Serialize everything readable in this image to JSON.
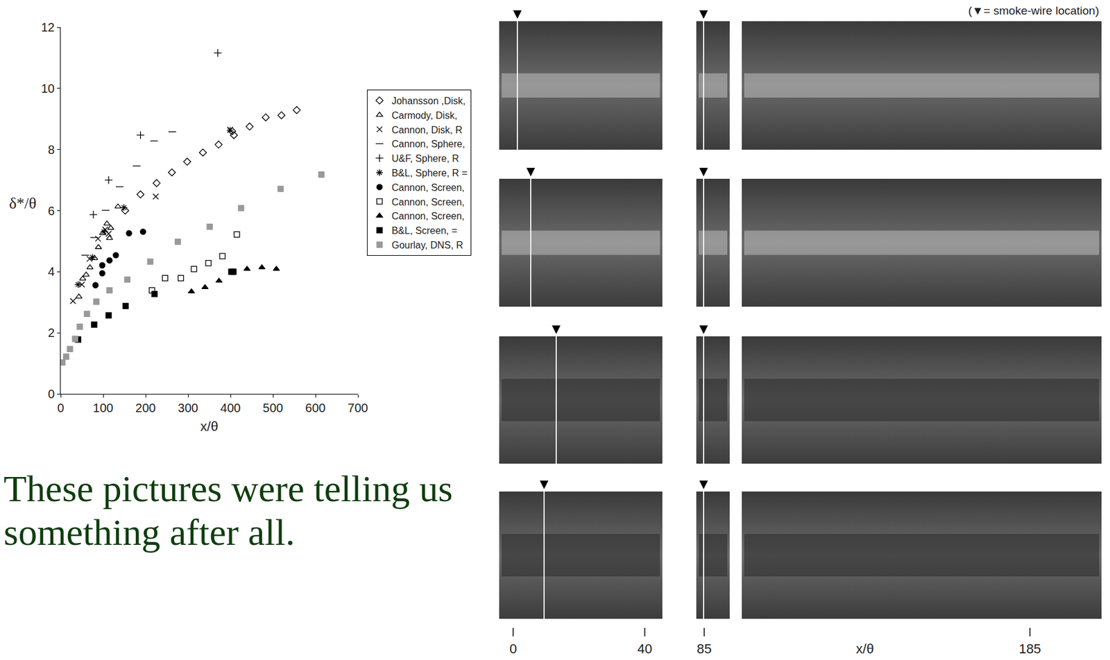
{
  "chart_data": {
    "type": "scatter",
    "x_label": "x/θ",
    "y_label": "δ*/θ",
    "xlim": [
      0,
      700
    ],
    "xticks": [
      0,
      100,
      200,
      300,
      400,
      500,
      600,
      700
    ],
    "ylim": [
      0,
      12
    ],
    "yticks": [
      0,
      2,
      4,
      6,
      8,
      10,
      12
    ],
    "grid": false,
    "legend": "right",
    "series": [
      {
        "name": "Johansson ,Disk,",
        "color": "#000000",
        "marker": "diamond-open",
        "x": [
          152,
          188,
          226,
          262,
          298,
          335,
          372,
          404,
          408,
          445,
          483,
          520,
          556
        ],
        "values": [
          6.0,
          6.53,
          6.9,
          7.25,
          7.6,
          7.9,
          8.16,
          8.6,
          8.47,
          8.75,
          9.05,
          9.12,
          9.29
        ]
      },
      {
        "name": "Carmody, Disk,",
        "color": "#000000",
        "marker": "triangle-up-open",
        "x": [
          43,
          52,
          60,
          69,
          80,
          89,
          99,
          109,
          115,
          118,
          135
        ],
        "values": [
          3.18,
          3.77,
          3.9,
          4.14,
          4.44,
          4.8,
          5.26,
          5.57,
          5.1,
          5.43,
          6.13
        ]
      },
      {
        "name": "Cannon, Disk, R",
        "color": "#000000",
        "marker": "x-thin-open",
        "x": [
          29,
          50,
          68,
          88,
          105,
          113,
          224,
          399
        ],
        "values": [
          3.04,
          3.58,
          4.42,
          5.08,
          5.38,
          5.24,
          6.46,
          8.65
        ]
      },
      {
        "name": "Cannon, Sphere,",
        "color": "#000000",
        "marker": "line-ew-open",
        "x": [
          58,
          79,
          106,
          139,
          179,
          220,
          263
        ],
        "values": [
          4.54,
          5.12,
          6.01,
          6.78,
          7.46,
          8.28,
          8.58
        ]
      },
      {
        "name": "U&F, Sphere, R",
        "color": "#000000",
        "marker": "cross-thin-open",
        "x": [
          77,
          113,
          188,
          370
        ],
        "values": [
          5.87,
          7.0,
          8.47,
          11.16
        ]
      },
      {
        "name": "B&L, Sphere, R =",
        "color": "#000000",
        "marker": "asterisk-open",
        "x": [
          41,
          75,
          102,
          149,
          399
        ],
        "values": [
          3.58,
          4.47,
          5.31,
          6.1,
          8.63
        ]
      },
      {
        "name": "Cannon, Screen,",
        "color": "#000000",
        "marker": "circle",
        "x": [
          82,
          98,
          98,
          115,
          130,
          161,
          194
        ],
        "values": [
          3.56,
          3.95,
          4.21,
          4.37,
          4.54,
          5.26,
          5.31
        ]
      },
      {
        "name": "Cannon, Screen,",
        "color": "#000000",
        "marker": "square-open",
        "x": [
          215,
          246,
          283,
          314,
          348,
          381,
          415
        ],
        "values": [
          3.39,
          3.79,
          3.79,
          4.09,
          4.28,
          4.51,
          5.22
        ]
      },
      {
        "name": "Cannon, Screen,",
        "color": "#000000",
        "marker": "triangle-up",
        "x": [
          308,
          340,
          373,
          404,
          439,
          474,
          508
        ],
        "values": [
          3.35,
          3.49,
          3.7,
          4.0,
          4.09,
          4.14,
          4.09
        ]
      },
      {
        "name": "B&L, Screen, =",
        "color": "#000000",
        "marker": "square",
        "x": [
          41,
          79,
          113,
          153,
          221,
          402,
          407
        ],
        "values": [
          1.78,
          2.27,
          2.57,
          2.88,
          3.27,
          4.0,
          4.0
        ]
      },
      {
        "name": "Gourlay, DNS, R",
        "color": "#999999",
        "marker": "square",
        "x": [
          4,
          13,
          22,
          34,
          45,
          62,
          84,
          115,
          157,
          211,
          276,
          351,
          425,
          518,
          614
        ],
        "values": [
          1.03,
          1.22,
          1.47,
          1.8,
          2.2,
          2.62,
          3.02,
          3.39,
          3.74,
          4.33,
          4.98,
          5.47,
          6.08,
          6.71,
          7.18
        ]
      }
    ]
  },
  "caption": "These pictures were telling us something after all.",
  "photo_panel": {
    "note": "(▼= smoke-wire location)",
    "x_ticks": [
      "0",
      "40",
      "85",
      "185"
    ],
    "x_label": "x/θ"
  }
}
